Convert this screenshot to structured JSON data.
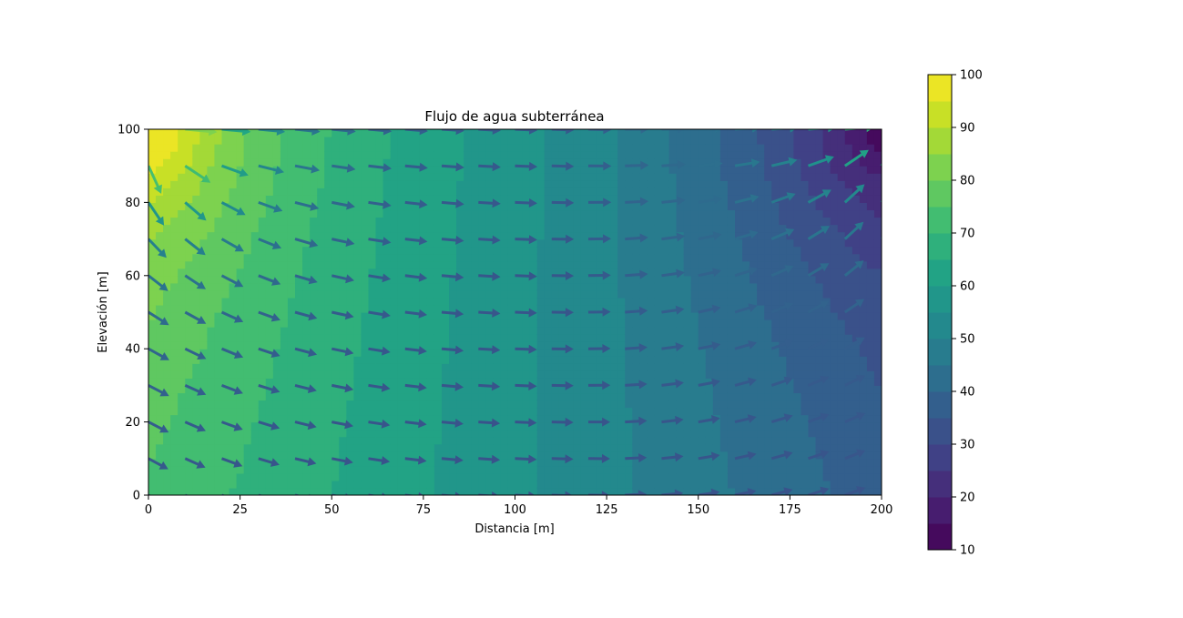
{
  "chart_data": {
    "type": "heatmap",
    "subtype": "filled-contour with quiver",
    "title": "Flujo de agua subterránea",
    "xlabel": "Distancia [m]",
    "ylabel": "Elevación [m]",
    "xlim": [
      0,
      200
    ],
    "ylim": [
      0,
      100
    ],
    "x_ticks": [
      0,
      25,
      50,
      75,
      100,
      125,
      150,
      175,
      200
    ],
    "y_ticks": [
      0,
      20,
      40,
      60,
      80,
      100
    ],
    "grid": false,
    "colormap": "viridis",
    "colorbar": {
      "range": [
        10,
        100
      ],
      "ticks": [
        10,
        20,
        30,
        40,
        50,
        60,
        70,
        80,
        90,
        100
      ],
      "levels": 18,
      "placement": "right"
    },
    "head_field": {
      "description": "hydraulic head (filled contours)",
      "sample_points": [
        {
          "x": 0,
          "y": 100,
          "value": 100
        },
        {
          "x": 0,
          "y": 60,
          "value": 80
        },
        {
          "x": 0,
          "y": 0,
          "value": 73
        },
        {
          "x": 50,
          "y": 50,
          "value": 73
        },
        {
          "x": 100,
          "y": 50,
          "value": 55
        },
        {
          "x": 150,
          "y": 50,
          "value": 38
        },
        {
          "x": 200,
          "y": 0,
          "value": 35
        },
        {
          "x": 200,
          "y": 60,
          "value": 28
        },
        {
          "x": 200,
          "y": 100,
          "value": 10
        }
      ]
    },
    "quiver": {
      "description": "groundwater flow vectors on a 21 x 11 grid (x step 10 m, y step 10 m), colored by velocity magnitude",
      "x_grid": [
        0,
        10,
        20,
        30,
        40,
        50,
        60,
        70,
        80,
        90,
        100,
        110,
        120,
        130,
        140,
        150,
        160,
        170,
        180,
        190,
        200
      ],
      "y_grid": [
        0,
        10,
        20,
        30,
        40,
        50,
        60,
        70,
        80,
        90,
        100
      ]
    }
  },
  "colors": {
    "background": "#ffffff",
    "axis": "#000000"
  }
}
